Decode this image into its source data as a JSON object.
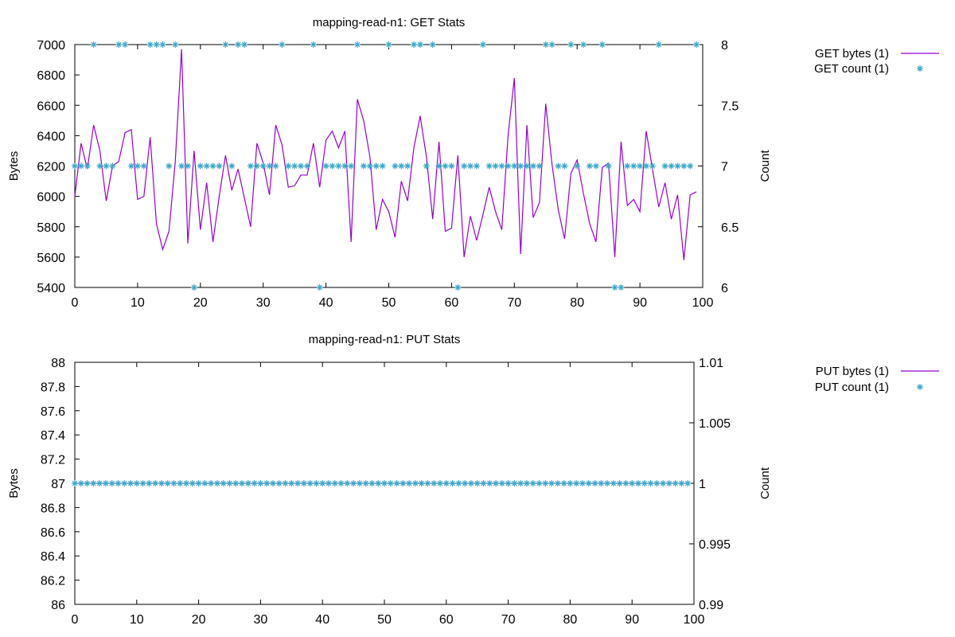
{
  "colors": {
    "line": "#9400d3",
    "points": "#3ba7c9",
    "axis": "#000000"
  },
  "chart_data": [
    {
      "type": "line",
      "title": "mapping-read-n1: GET Stats",
      "xlabel": "",
      "ylabel": "Bytes",
      "y2label": "Count",
      "xlim": [
        0,
        100
      ],
      "ylim": [
        5400,
        7000
      ],
      "y2lim": [
        6,
        8
      ],
      "x_ticks": [
        "0",
        "10",
        "20",
        "30",
        "40",
        "50",
        "60",
        "70",
        "80",
        "90",
        "100"
      ],
      "y_ticks": [
        "5400",
        "5600",
        "5800",
        "6000",
        "6200",
        "6400",
        "6600",
        "6800",
        "7000"
      ],
      "y2_ticks": [
        "6",
        "6.5",
        "7",
        "7.5",
        "8"
      ],
      "legend_position": "top-right outside",
      "series": [
        {
          "name": "GET bytes (1)",
          "style": "line",
          "axis": "y",
          "values": [
            6000,
            6350,
            6180,
            6470,
            6300,
            5970,
            6200,
            6230,
            6420,
            6440,
            5980,
            6000,
            6390,
            5820,
            5650,
            5770,
            6230,
            6970,
            5690,
            6300,
            5780,
            6090,
            5700,
            6000,
            6270,
            6040,
            6180,
            5990,
            5800,
            6350,
            6220,
            6010,
            6470,
            6340,
            6060,
            6070,
            6140,
            6140,
            6350,
            6060,
            6370,
            6430,
            6320,
            6430,
            5700,
            6640,
            6500,
            6260,
            5780,
            5980,
            5900,
            5730,
            6100,
            5970,
            6320,
            6530,
            6260,
            5850,
            6360,
            5770,
            5790,
            6270,
            5600,
            5870,
            5710,
            5880,
            6060,
            5900,
            5780,
            6400,
            6780,
            5620,
            6470,
            5860,
            5960,
            6610,
            6210,
            5910,
            5720,
            6150,
            6240,
            6020,
            5820,
            5700,
            6190,
            6220,
            5600,
            6360,
            5940,
            5980,
            5900,
            6430,
            6180,
            5930,
            6090,
            5850,
            6010,
            5580,
            6010,
            6030
          ]
        },
        {
          "name": "GET count (1)",
          "style": "points",
          "axis": "y2",
          "values": [
            7,
            7,
            7,
            8,
            7,
            7,
            7,
            8,
            8,
            7,
            7,
            7,
            8,
            8,
            8,
            7,
            8,
            7,
            7,
            6,
            7,
            7,
            7,
            7,
            8,
            7,
            8,
            8,
            7,
            7,
            7,
            7,
            7,
            8,
            7,
            7,
            7,
            7,
            8,
            6,
            7,
            7,
            7,
            7,
            7,
            8,
            7,
            7,
            7,
            7,
            8,
            7,
            7,
            7,
            8,
            8,
            7,
            8,
            7,
            7,
            7,
            6,
            7,
            7,
            7,
            8,
            7,
            7,
            7,
            7,
            7,
            7,
            7,
            7,
            7,
            8,
            8,
            7,
            7,
            8,
            7,
            8,
            7,
            7,
            8,
            7,
            6,
            6,
            7,
            7,
            7,
            7,
            7,
            8,
            7,
            7,
            7,
            7,
            7,
            8
          ]
        }
      ]
    },
    {
      "type": "line",
      "title": "mapping-read-n1: PUT Stats",
      "xlabel": "",
      "ylabel": "Bytes",
      "y2label": "Count",
      "xlim": [
        0,
        100
      ],
      "ylim": [
        86,
        88
      ],
      "y2lim": [
        0.99,
        1.01
      ],
      "x_ticks": [
        "0",
        "10",
        "20",
        "30",
        "40",
        "50",
        "60",
        "70",
        "80",
        "90",
        "100"
      ],
      "y_ticks": [
        "86",
        "86.2",
        "86.4",
        "86.6",
        "86.8",
        "87",
        "87.2",
        "87.4",
        "87.6",
        "87.8",
        "88"
      ],
      "y2_ticks": [
        "0.99",
        "0.995",
        "1",
        "1.005",
        "1.01"
      ],
      "legend_position": "top-right outside",
      "series": [
        {
          "name": "PUT bytes (1)",
          "style": "line",
          "axis": "y",
          "x_range": [
            0,
            99
          ],
          "constant_value": 87
        },
        {
          "name": "PUT count (1)",
          "style": "points",
          "axis": "y2",
          "x_range": [
            0,
            99
          ],
          "constant_value": 1
        }
      ]
    }
  ]
}
